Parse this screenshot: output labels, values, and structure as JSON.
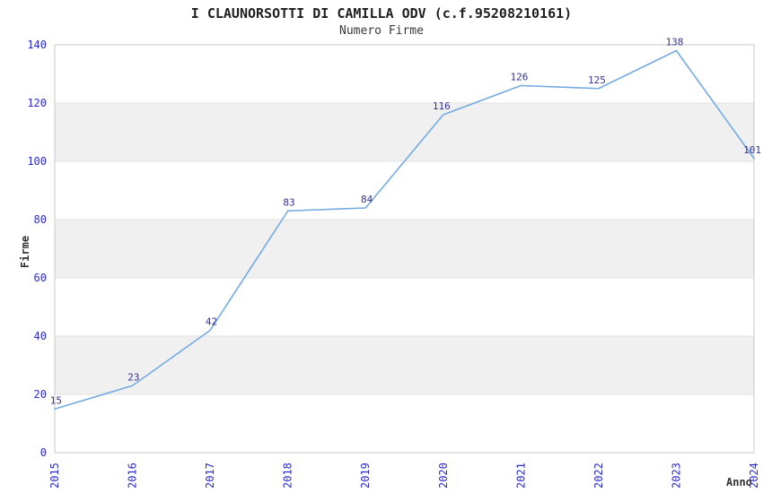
{
  "chart_data": {
    "type": "line",
    "title": "I CLAUNORSOTTI DI CAMILLA ODV (c.f.95208210161)",
    "subtitle": "Numero Firme",
    "xlabel": "Anno",
    "ylabel": "Firme",
    "categories": [
      "2015",
      "2016",
      "2017",
      "2018",
      "2019",
      "2020",
      "2021",
      "2022",
      "2023",
      "2024"
    ],
    "values": [
      15,
      23,
      42,
      83,
      84,
      116,
      126,
      125,
      138,
      101
    ],
    "ylim": [
      0,
      140
    ],
    "yticks": [
      0,
      20,
      40,
      60,
      80,
      100,
      120,
      140
    ],
    "grid": "alternating-horizontal-bands",
    "legend": "none",
    "point_labels_shown": true,
    "x_tick_rotation": -90,
    "colors": {
      "line": "#74abe2",
      "tick_label": "#2a2ad0",
      "point_label": "#333390",
      "band": "#f0f0f0",
      "band_edge": "#e2e2e2",
      "border": "#c9c9c9",
      "title": "#1f1f1f",
      "axis_label": "#333333",
      "background": "#ffffff"
    }
  }
}
